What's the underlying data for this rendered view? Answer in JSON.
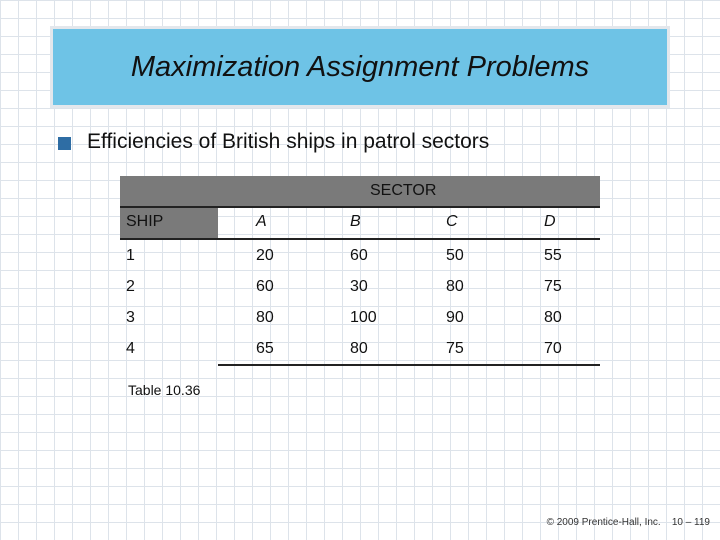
{
  "slide": {
    "title": "Maximization Assignment Problems",
    "bullet": "Efficiencies of British ships in patrol sectors",
    "caption": "Table 10.36",
    "footer_copyright": "© 2009 Prentice-Hall, Inc.",
    "footer_page": "10 – 119"
  },
  "table": {
    "group_header": "SECTOR",
    "row_header": "SHIP",
    "columns": [
      "A",
      "B",
      "C",
      "D"
    ],
    "rows": [
      {
        "ship": "1",
        "values": [
          "20",
          "60",
          "50",
          "55"
        ]
      },
      {
        "ship": "2",
        "values": [
          "60",
          "30",
          "80",
          "75"
        ]
      },
      {
        "ship": "3",
        "values": [
          "80",
          "100",
          "90",
          "80"
        ]
      },
      {
        "ship": "4",
        "values": [
          "65",
          "80",
          "75",
          "70"
        ]
      }
    ]
  },
  "colors": {
    "title_bg": "#6ec3e6",
    "bullet": "#2e6da4",
    "header_bg": "#7a7a7a"
  }
}
